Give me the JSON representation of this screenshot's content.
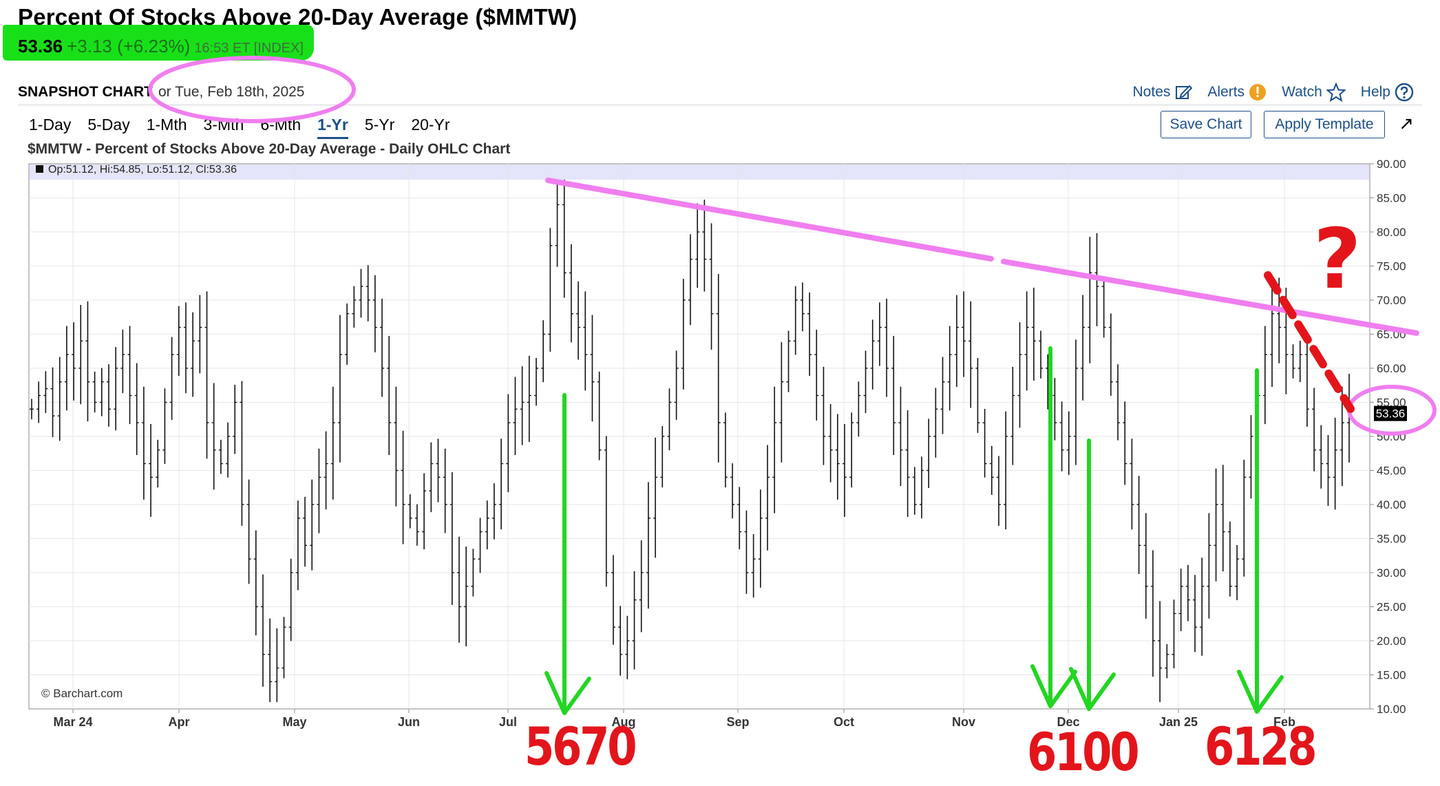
{
  "header": {
    "title": "Percent Of Stocks Above 20-Day Average ($MMTW)",
    "last": "53.36",
    "change": "+3.13 (+6.23%)",
    "time": "16:53 ET [INDEX]",
    "snapshot_label": "SNAPSHOT CHART",
    "snapshot_date": "or Tue, Feb 18th, 2025"
  },
  "toplinks": {
    "notes": "Notes",
    "alerts": "Alerts",
    "watch": "Watch",
    "help": "Help"
  },
  "periods": [
    "1-Day",
    "5-Day",
    "1-Mth",
    "3-Mth",
    "6-Mth",
    "1-Yr",
    "5-Yr",
    "20-Yr"
  ],
  "active_period": "1-Yr",
  "buttons": {
    "save": "Save Chart",
    "apply": "Apply Template"
  },
  "chart_title": "$MMTW - Percent of Stocks Above 20-Day Average - Daily OHLC Chart",
  "ohlc_readout": "Op:51.12, Hi:54.85, Lo:51.12, Cl:53.36",
  "credit": "© Barchart.com",
  "last_price_tag": "53.36",
  "annotations": {
    "a1": "5670",
    "a2": "6100",
    "a3": "6128",
    "q": "?"
  },
  "colors": {
    "accent": "#1a4f8a",
    "highlight": "#18e018",
    "circle": "#f07ef0",
    "trend": "#f07ef0",
    "arrow": "#22d622",
    "note": "#e3151b"
  },
  "chart_data": {
    "type": "line",
    "title": "$MMTW - Percent of Stocks Above 20-Day Average - Daily OHLC Chart",
    "xlabel": "",
    "ylabel": "",
    "ylim": [
      10,
      90
    ],
    "y_ticks": [
      "90.00",
      "85.00",
      "80.00",
      "75.00",
      "70.00",
      "65.00",
      "60.00",
      "55.00",
      "50.00",
      "45.00",
      "40.00",
      "35.00",
      "30.00",
      "25.00",
      "20.00",
      "15.00",
      "10.00"
    ],
    "x_ticks": [
      "Mar 24",
      "Apr",
      "May",
      "Jun",
      "Jul",
      "Aug",
      "Sep",
      "Oct",
      "Nov",
      "Dec",
      "Jan 25",
      "Feb"
    ],
    "grid": true,
    "series": [
      {
        "values": [
          54,
          56,
          57,
          53,
          58,
          62,
          60,
          64,
          58,
          55,
          58,
          54,
          60,
          62,
          56,
          52,
          46,
          44,
          48,
          55,
          62,
          66,
          60,
          64,
          66,
          52,
          48,
          46,
          50,
          55,
          40,
          32,
          25,
          18,
          14,
          16,
          22,
          30,
          38,
          34,
          40,
          44,
          46,
          52,
          62,
          68,
          70,
          72,
          70,
          66,
          60,
          52,
          45,
          40,
          38,
          36,
          42,
          46,
          44,
          40,
          30,
          25,
          28,
          32,
          36,
          38,
          40,
          46,
          52,
          54,
          55,
          56,
          60,
          65,
          78,
          84,
          74,
          68,
          66,
          62,
          58,
          48,
          30,
          22,
          18,
          20,
          26,
          30,
          38,
          44,
          50,
          55,
          60,
          70,
          76,
          80,
          76,
          68,
          52,
          44,
          40,
          36,
          30,
          32,
          38,
          44,
          52,
          58,
          64,
          70,
          68,
          62,
          56,
          50,
          48,
          46,
          44,
          52,
          56,
          60,
          64,
          66,
          60,
          52,
          48,
          44,
          40,
          45,
          50,
          54,
          58,
          62,
          66,
          64,
          60,
          52,
          46,
          44,
          40,
          50,
          56,
          62,
          66,
          64,
          60,
          56,
          52,
          48,
          50,
          60,
          66,
          74,
          72,
          66,
          58,
          52,
          46,
          40,
          34,
          28,
          20,
          16,
          18,
          24,
          28,
          26,
          22,
          28,
          34,
          40,
          36,
          28,
          32,
          44,
          50,
          56,
          62,
          68,
          66,
          62,
          60,
          62,
          54,
          48,
          46,
          44,
          48,
          52,
          53.36
        ]
      }
    ]
  }
}
